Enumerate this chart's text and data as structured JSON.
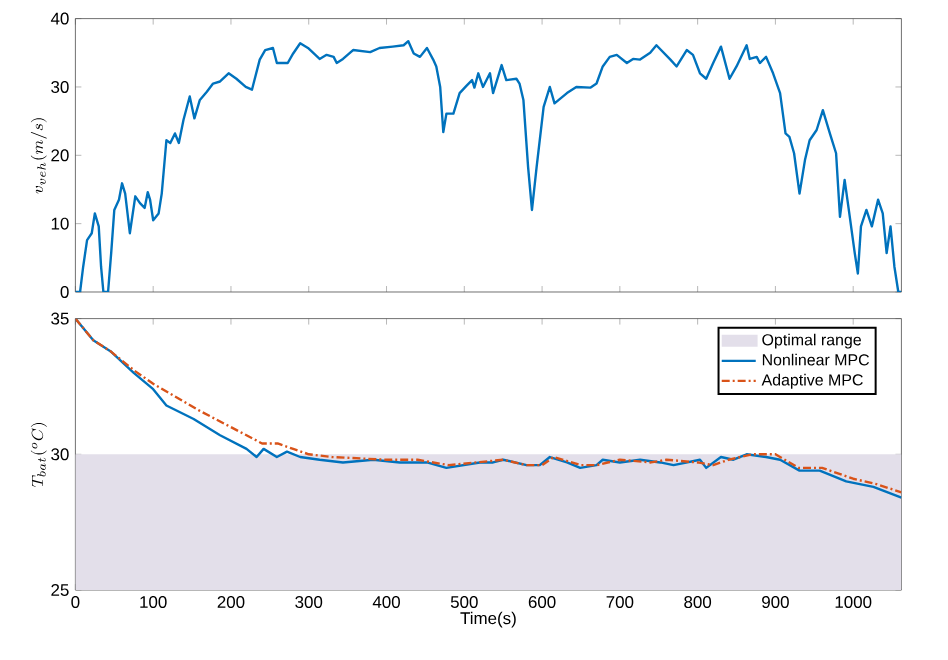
{
  "chart_data": [
    {
      "type": "line",
      "ylabel": "v_{veh}(m/s)",
      "xlim": [
        0,
        1062
      ],
      "xticks": [
        {
          "value": 0,
          "label": null
        },
        {
          "value": 100,
          "label": null
        },
        {
          "value": 200,
          "label": null
        },
        {
          "value": 300,
          "label": null
        },
        {
          "value": 400,
          "label": null
        },
        {
          "value": 500,
          "label": null
        },
        {
          "value": 600,
          "label": null
        },
        {
          "value": 700,
          "label": null
        },
        {
          "value": 800,
          "label": null
        },
        {
          "value": 900,
          "label": null
        },
        {
          "value": 1000,
          "label": null
        }
      ],
      "ylim": [
        0,
        40
      ],
      "yticks": [
        0,
        10,
        20,
        30,
        40
      ],
      "tick_labels": "y",
      "legend": false,
      "series": [
        {
          "color": "#0072bd",
          "x": [
            0,
            6,
            10,
            15,
            21,
            25,
            30,
            33,
            36,
            42,
            46,
            50,
            56,
            60,
            64,
            70,
            77,
            83,
            89,
            93,
            96,
            100,
            107,
            111,
            117,
            122,
            128,
            133,
            139,
            147,
            153,
            160,
            169,
            177,
            186,
            197,
            207,
            219,
            227,
            237,
            244,
            254,
            259,
            273,
            280,
            289,
            299,
            314,
            323,
            332,
            336,
            344,
            357,
            379,
            391,
            408,
            422,
            428,
            435,
            443,
            452,
            460,
            464,
            469,
            473,
            477,
            486,
            494,
            503,
            510,
            513,
            518,
            524,
            533,
            537,
            548,
            554,
            567,
            571,
            576,
            582,
            587,
            593,
            602,
            610,
            616,
            632,
            644,
            662,
            670,
            678,
            687,
            696,
            709,
            717,
            726,
            739,
            747,
            765,
            773,
            786,
            794,
            803,
            811,
            820,
            830,
            841,
            850,
            863,
            867,
            876,
            880,
            888,
            897,
            906,
            913,
            918,
            924,
            931,
            938,
            944,
            953,
            961,
            970,
            978,
            983,
            989,
            995,
            1002,
            1006,
            1010,
            1017,
            1024,
            1032,
            1038,
            1043,
            1048,
            1053,
            1058,
            1062
          ],
          "values": [
            0,
            0,
            3.7,
            7.6,
            8.6,
            11.5,
            9.6,
            3.7,
            0,
            0,
            5.7,
            12,
            13.5,
            15.9,
            14.4,
            8.6,
            14,
            13,
            12.3,
            14.6,
            13.5,
            10.5,
            11.5,
            14.4,
            22.2,
            21.8,
            23.2,
            21.8,
            25.2,
            28.6,
            25.4,
            28.1,
            29.3,
            30.5,
            30.8,
            32,
            31.2,
            30,
            29.6,
            34,
            35.4,
            35.7,
            33.5,
            33.5,
            34.9,
            36.4,
            35.7,
            34.1,
            34.7,
            34.4,
            33.5,
            34.1,
            35.4,
            35.1,
            35.7,
            35.9,
            36.1,
            36.7,
            34.9,
            34.4,
            35.7,
            34,
            33,
            30,
            23.4,
            26.1,
            26.1,
            29.1,
            30.2,
            31,
            29.9,
            32,
            30,
            32,
            29.1,
            33.2,
            31,
            31.2,
            30.5,
            28.1,
            18.3,
            12,
            18.3,
            27.1,
            30,
            27.6,
            29.1,
            30,
            29.9,
            30.5,
            33,
            34.4,
            34.7,
            33.5,
            34.1,
            34,
            35,
            36.1,
            34,
            33,
            35.4,
            34.7,
            32,
            31.2,
            33.5,
            35.9,
            31.2,
            33,
            36.1,
            34.1,
            34.4,
            33.5,
            34.4,
            32,
            29.1,
            23.2,
            22.7,
            20.3,
            14.4,
            19.3,
            22.2,
            23.7,
            26.6,
            23.2,
            20.3,
            11,
            16.4,
            11.5,
            5.7,
            2.7,
            9.6,
            12,
            9.6,
            13.5,
            11.5,
            5.7,
            9.6,
            3.7,
            0,
            0
          ]
        }
      ]
    },
    {
      "type": "line",
      "ylabel": "T_{bat}(^oC)",
      "xlabel": "Time(s)",
      "xlim": [
        0,
        1062
      ],
      "xticks": [
        0,
        100,
        200,
        300,
        400,
        500,
        600,
        700,
        800,
        900,
        1000
      ],
      "ylim": [
        25,
        35
      ],
      "yticks": [
        25,
        30,
        35
      ],
      "legend": "top right",
      "bands": [
        {
          "axis": "y",
          "from": 25,
          "to": 30,
          "label": "Optimal range",
          "color": "#e3dfea"
        }
      ],
      "series": [
        {
          "name": "Nonlinear MPC",
          "color": "#0072bd",
          "line_style": "solid",
          "x": [
            0,
            23,
            45,
            75,
            100,
            117,
            152,
            186,
            220,
            233,
            242,
            259,
            272,
            289,
            314,
            344,
            383,
            417,
            452,
            477,
            520,
            537,
            550,
            580,
            597,
            610,
            632,
            649,
            670,
            678,
            700,
            726,
            752,
            769,
            803,
            811,
            830,
            846,
            863,
            888,
            906,
            931,
            957,
            991,
            1026,
            1062
          ],
          "values": [
            35,
            34.2,
            33.8,
            33,
            32.4,
            31.8,
            31.3,
            30.7,
            30.2,
            29.9,
            30.2,
            29.9,
            30.1,
            29.9,
            29.8,
            29.7,
            29.8,
            29.7,
            29.7,
            29.5,
            29.7,
            29.7,
            29.8,
            29.6,
            29.6,
            29.9,
            29.7,
            29.5,
            29.6,
            29.8,
            29.7,
            29.8,
            29.7,
            29.6,
            29.8,
            29.5,
            29.9,
            29.8,
            30,
            29.9,
            29.8,
            29.4,
            29.4,
            29,
            28.8,
            28.4
          ]
        },
        {
          "name": "Adaptive MPC",
          "color": "#d95319",
          "line_style": "dashdot",
          "x": [
            0,
            23,
            45,
            75,
            100,
            130,
            160,
            200,
            240,
            260,
            280,
            300,
            330,
            400,
            440,
            480,
            550,
            580,
            600,
            615,
            650,
            670,
            700,
            740,
            760,
            800,
            820,
            840,
            870,
            900,
            930,
            960,
            1000,
            1030,
            1062
          ],
          "values": [
            35,
            34.2,
            33.8,
            33.1,
            32.6,
            32.1,
            31.6,
            31,
            30.4,
            30.4,
            30.2,
            30,
            29.9,
            29.8,
            29.8,
            29.6,
            29.8,
            29.6,
            29.6,
            29.9,
            29.6,
            29.6,
            29.8,
            29.7,
            29.8,
            29.7,
            29.6,
            29.8,
            30,
            30,
            29.5,
            29.5,
            29.1,
            28.9,
            28.6
          ]
        }
      ]
    }
  ]
}
